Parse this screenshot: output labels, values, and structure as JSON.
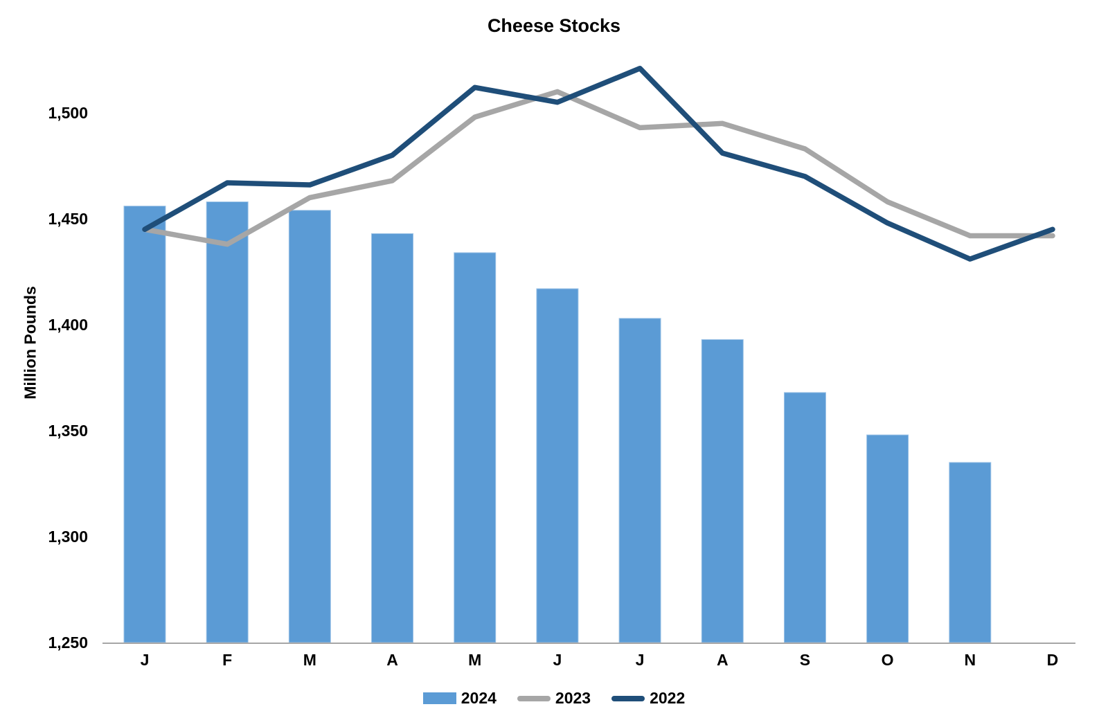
{
  "chart_data": {
    "type": "bar",
    "title": "Cheese Stocks",
    "ylabel": "Million Pounds",
    "xlabel": "",
    "categories": [
      "J",
      "F",
      "M",
      "A",
      "M",
      "J",
      "J",
      "A",
      "S",
      "O",
      "N",
      "D"
    ],
    "ylim": [
      1250,
      1540
    ],
    "yticks": [
      {
        "value": 1250,
        "label": "1,250"
      },
      {
        "value": 1300,
        "label": "1,300"
      },
      {
        "value": 1350,
        "label": "1,350"
      },
      {
        "value": 1400,
        "label": "1,400"
      },
      {
        "value": 1450,
        "label": "1,450"
      },
      {
        "value": 1500,
        "label": "1,500"
      }
    ],
    "grid": false,
    "legend_position": "bottom",
    "axis_line_color": "#A6A6A6",
    "series": [
      {
        "name": "2024",
        "type": "bar",
        "color": "#5B9BD5",
        "values": [
          1456,
          1458,
          1454,
          1443,
          1434,
          1417,
          1403,
          1393,
          1368,
          1348,
          1335,
          null
        ]
      },
      {
        "name": "2023",
        "type": "line",
        "color": "#A6A6A6",
        "values": [
          1445,
          1438,
          1460,
          1468,
          1498,
          1510,
          1493,
          1495,
          1483,
          1458,
          1442,
          1442
        ]
      },
      {
        "name": "2022",
        "type": "line",
        "color": "#1F4E79",
        "values": [
          1445,
          1467,
          1466,
          1480,
          1512,
          1505,
          1521,
          1481,
          1470,
          1448,
          1431,
          1445
        ]
      }
    ]
  }
}
